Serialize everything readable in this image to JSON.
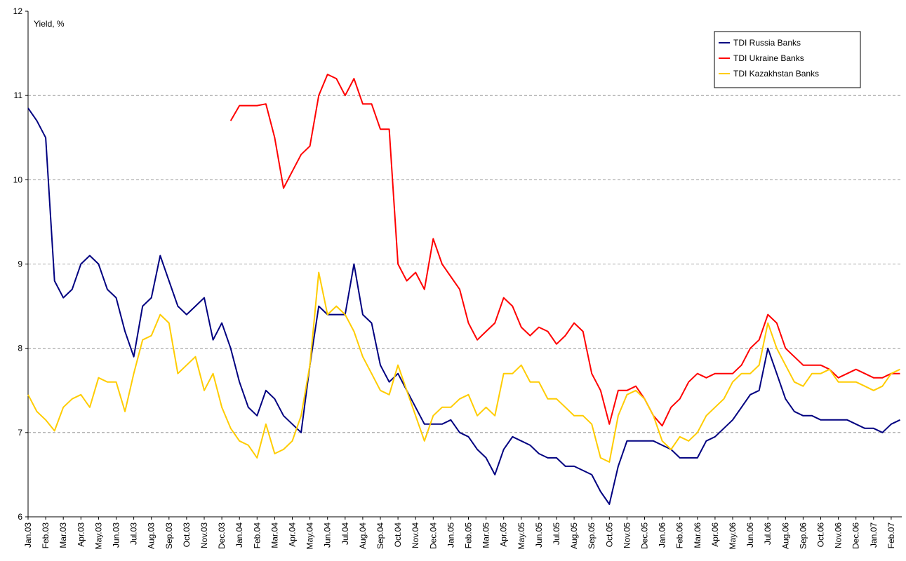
{
  "chart_data": {
    "type": "line",
    "y_label": "Yield, %",
    "categories": [
      "Jan.03",
      null,
      "Feb.03",
      null,
      "Mar.03",
      null,
      "Apr.03",
      null,
      "May.03",
      null,
      "Jun.03",
      null,
      "Jul.03",
      null,
      "Aug.03",
      null,
      "Sep.03",
      null,
      "Oct.03",
      null,
      "Nov.03",
      null,
      "Dec.03",
      null,
      "Jan.04",
      null,
      "Feb.04",
      null,
      "Mar.04",
      null,
      "Apr.04",
      null,
      "May.04",
      null,
      "Jun.04",
      null,
      "Jul.04",
      null,
      "Aug.04",
      null,
      "Sep.04",
      null,
      "Oct.04",
      null,
      "Nov.04",
      null,
      "Dec.04",
      null,
      "Jan.05",
      null,
      "Feb.05",
      null,
      "Mar.05",
      null,
      "Apr.05",
      null,
      "May.05",
      null,
      "Jun.05",
      null,
      "Jul.05",
      null,
      "Aug.05",
      null,
      "Sep.05",
      null,
      "Oct.05",
      null,
      "Nov.05",
      null,
      "Dec.05",
      null,
      "Jan.06",
      null,
      "Feb.06",
      null,
      "Mar.06",
      null,
      "Apr.06",
      null,
      "May.06",
      null,
      "Jun.06",
      null,
      "Jul.06",
      null,
      "Aug.06",
      null,
      "Sep.06",
      null,
      "Oct.06",
      null,
      "Nov.06",
      null,
      "Dec.06",
      null,
      "Jan.07",
      null,
      "Feb.07",
      null
    ],
    "series": [
      {
        "name": "TDI Russia Banks",
        "color": "#000080",
        "values": [
          10.85,
          10.7,
          10.5,
          8.8,
          8.6,
          8.7,
          9.0,
          9.1,
          9.0,
          8.7,
          8.6,
          8.2,
          7.9,
          8.5,
          8.6,
          9.1,
          8.8,
          8.5,
          8.4,
          8.5,
          8.6,
          8.1,
          8.3,
          8.0,
          7.6,
          7.3,
          7.2,
          7.5,
          7.4,
          7.2,
          7.1,
          7.0,
          7.8,
          8.5,
          8.4,
          8.4,
          8.4,
          9.0,
          8.4,
          8.3,
          7.8,
          7.6,
          7.7,
          7.5,
          7.3,
          7.1,
          7.1,
          7.1,
          7.15,
          7.0,
          6.95,
          6.8,
          6.7,
          6.5,
          6.8,
          6.95,
          6.9,
          6.85,
          6.75,
          6.7,
          6.7,
          6.6,
          6.6,
          6.55,
          6.5,
          6.3,
          6.15,
          6.6,
          6.9,
          6.9,
          6.9,
          6.9,
          6.85,
          6.8,
          6.7,
          6.7,
          6.7,
          6.9,
          6.95,
          7.05,
          7.15,
          7.3,
          7.45,
          7.5,
          8.0,
          7.7,
          7.4,
          7.25,
          7.2,
          7.2,
          7.15,
          7.15,
          7.15,
          7.15,
          7.1,
          7.05,
          7.05,
          7.0,
          7.1,
          7.15
        ]
      },
      {
        "name": "TDI Ukraine Banks",
        "color": "#ff0000",
        "values": [
          null,
          null,
          null,
          null,
          null,
          null,
          null,
          null,
          null,
          null,
          null,
          null,
          null,
          null,
          null,
          null,
          null,
          null,
          null,
          null,
          null,
          null,
          null,
          10.7,
          10.88,
          10.88,
          10.88,
          10.9,
          10.5,
          9.9,
          10.1,
          10.3,
          10.4,
          11.0,
          11.25,
          11.2,
          11.0,
          11.2,
          10.9,
          10.9,
          10.6,
          10.6,
          9.0,
          8.8,
          8.9,
          8.7,
          9.3,
          9.0,
          8.85,
          8.7,
          8.3,
          8.1,
          8.2,
          8.3,
          8.6,
          8.5,
          8.25,
          8.15,
          8.25,
          8.2,
          8.05,
          8.15,
          8.3,
          8.2,
          7.7,
          7.5,
          7.1,
          7.5,
          7.5,
          7.55,
          7.4,
          7.2,
          7.08,
          7.3,
          7.4,
          7.6,
          7.7,
          7.65,
          7.7,
          7.7,
          7.7,
          7.8,
          8.0,
          8.1,
          8.4,
          8.3,
          8.0,
          7.9,
          7.8,
          7.8,
          7.8,
          7.75,
          7.65,
          7.7,
          7.75,
          7.7,
          7.65,
          7.65,
          7.7,
          7.7
        ]
      },
      {
        "name": "TDI Kazakhstan Banks",
        "color": "#ffcc00",
        "values": [
          7.45,
          7.25,
          7.15,
          7.02,
          7.3,
          7.4,
          7.45,
          7.3,
          7.65,
          7.6,
          7.6,
          7.25,
          7.7,
          8.1,
          8.15,
          8.4,
          8.3,
          7.7,
          7.8,
          7.9,
          7.5,
          7.7,
          7.3,
          7.05,
          6.9,
          6.85,
          6.7,
          7.1,
          6.75,
          6.8,
          6.9,
          7.2,
          7.8,
          8.9,
          8.4,
          8.5,
          8.4,
          8.2,
          7.9,
          7.7,
          7.5,
          7.45,
          7.8,
          7.5,
          7.2,
          6.9,
          7.2,
          7.3,
          7.3,
          7.4,
          7.45,
          7.2,
          7.3,
          7.2,
          7.7,
          7.7,
          7.8,
          7.6,
          7.6,
          7.4,
          7.4,
          7.3,
          7.2,
          7.2,
          7.1,
          6.7,
          6.65,
          7.2,
          7.45,
          7.5,
          7.4,
          7.2,
          6.9,
          6.8,
          6.95,
          6.9,
          7.0,
          7.2,
          7.3,
          7.4,
          7.6,
          7.7,
          7.7,
          7.8,
          8.3,
          8.0,
          7.8,
          7.6,
          7.55,
          7.7,
          7.7,
          7.75,
          7.6,
          7.6,
          7.6,
          7.55,
          7.5,
          7.55,
          7.7,
          7.75
        ]
      }
    ],
    "ylim": [
      6,
      12
    ],
    "yticks": [
      6,
      7,
      8,
      9,
      10,
      11,
      12
    ],
    "grid": true,
    "legend": "upper right"
  }
}
